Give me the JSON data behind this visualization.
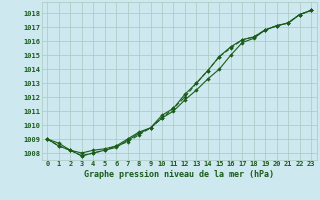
{
  "title": "Graphe pression niveau de la mer (hPa)",
  "bg_color": "#cde8ee",
  "grid_color": "#aac8c0",
  "line_color": "#1a5c1a",
  "x_labels": [
    "0",
    "1",
    "2",
    "3",
    "4",
    "5",
    "6",
    "7",
    "8",
    "9",
    "10",
    "11",
    "12",
    "13",
    "14",
    "15",
    "16",
    "17",
    "18",
    "19",
    "20",
    "21",
    "22",
    "23"
  ],
  "ylim": [
    1007.5,
    1018.8
  ],
  "yticks": [
    1008,
    1009,
    1010,
    1011,
    1012,
    1013,
    1014,
    1015,
    1016,
    1017,
    1018
  ],
  "line1": [
    1009.0,
    1008.7,
    1008.2,
    1008.0,
    1008.2,
    1008.3,
    1008.5,
    1009.0,
    1009.5,
    1009.8,
    1010.5,
    1011.0,
    1011.8,
    1012.5,
    1013.3,
    1014.0,
    1015.0,
    1015.9,
    1016.2,
    1016.8,
    1017.1,
    1017.3,
    1017.9,
    1018.2
  ],
  "line2": [
    1009.0,
    1008.5,
    1008.2,
    1007.8,
    1008.0,
    1008.2,
    1008.4,
    1008.9,
    1009.4,
    1009.8,
    1010.7,
    1011.2,
    1012.2,
    1013.0,
    1013.9,
    1014.9,
    1015.6,
    1016.1,
    1016.3,
    1016.8,
    1017.1,
    1017.3,
    1017.9,
    1018.2
  ],
  "line3": [
    1009.0,
    1008.5,
    1008.2,
    1007.8,
    1008.0,
    1008.2,
    1008.5,
    1008.8,
    1009.3,
    1009.8,
    1010.5,
    1011.2,
    1012.0,
    1013.0,
    1013.9,
    1014.9,
    1015.5,
    1016.1,
    1016.3,
    1016.8,
    1017.1,
    1017.3,
    1017.9,
    1018.2
  ],
  "marker_size": 2.2,
  "line_width": 0.8,
  "tick_fontsize": 5.0,
  "title_fontsize": 6.0
}
